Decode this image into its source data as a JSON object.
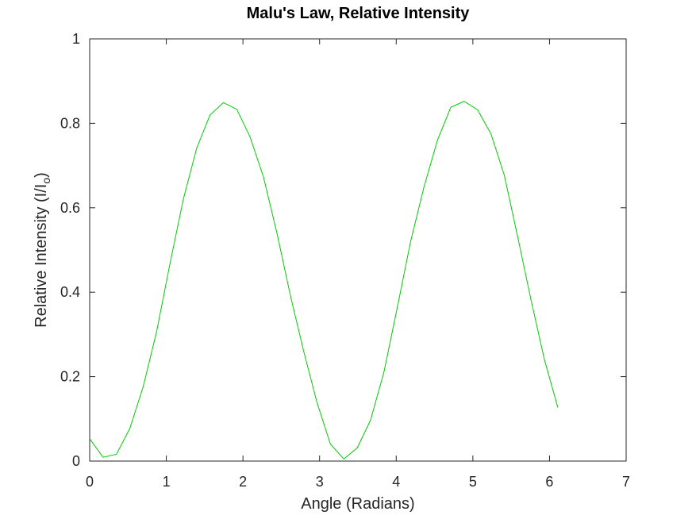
{
  "chart_data": {
    "type": "line",
    "title": "Malu's Law, Relative Intensity",
    "xlabel": "Angle (Radians)",
    "ylabel": {
      "main": "Relative Intensity (I/I",
      "subscript": "o",
      "close": ")"
    },
    "xlim": [
      0,
      7
    ],
    "ylim": [
      0,
      1
    ],
    "xticks": [
      0,
      1,
      2,
      3,
      4,
      5,
      6,
      7
    ],
    "yticks": [
      0,
      0.2,
      0.4,
      0.6,
      0.8,
      1
    ],
    "xtick_labels": [
      "0",
      "1",
      "2",
      "3",
      "4",
      "5",
      "6",
      "7"
    ],
    "ytick_labels": [
      "0",
      "0.2",
      "0.4",
      "0.6",
      "0.8",
      "1"
    ],
    "grid": false,
    "legend": "none",
    "series": [
      {
        "color": "#00cc00",
        "x": [
          0,
          0.1745,
          0.3491,
          0.5236,
          0.6981,
          0.8727,
          1.0472,
          1.2217,
          1.3963,
          1.5708,
          1.7453,
          1.9199,
          2.0944,
          2.2689,
          2.4435,
          2.618,
          2.7925,
          2.9671,
          3.1416,
          3.3161,
          3.4907,
          3.6652,
          3.8397,
          4.0143,
          4.1888,
          4.3633,
          4.5379,
          4.7124,
          4.8869,
          5.0615,
          5.236,
          5.4105,
          5.5851,
          5.7596,
          5.9341,
          6.1087
        ],
        "y": [
          0.053,
          0.009,
          0.016,
          0.077,
          0.176,
          0.306,
          0.467,
          0.62,
          0.741,
          0.82,
          0.849,
          0.833,
          0.767,
          0.672,
          0.54,
          0.393,
          0.26,
          0.138,
          0.04,
          0.005,
          0.031,
          0.097,
          0.211,
          0.364,
          0.521,
          0.65,
          0.76,
          0.838,
          0.852,
          0.832,
          0.775,
          0.677,
          0.531,
          0.381,
          0.24,
          0.127
        ]
      }
    ]
  }
}
